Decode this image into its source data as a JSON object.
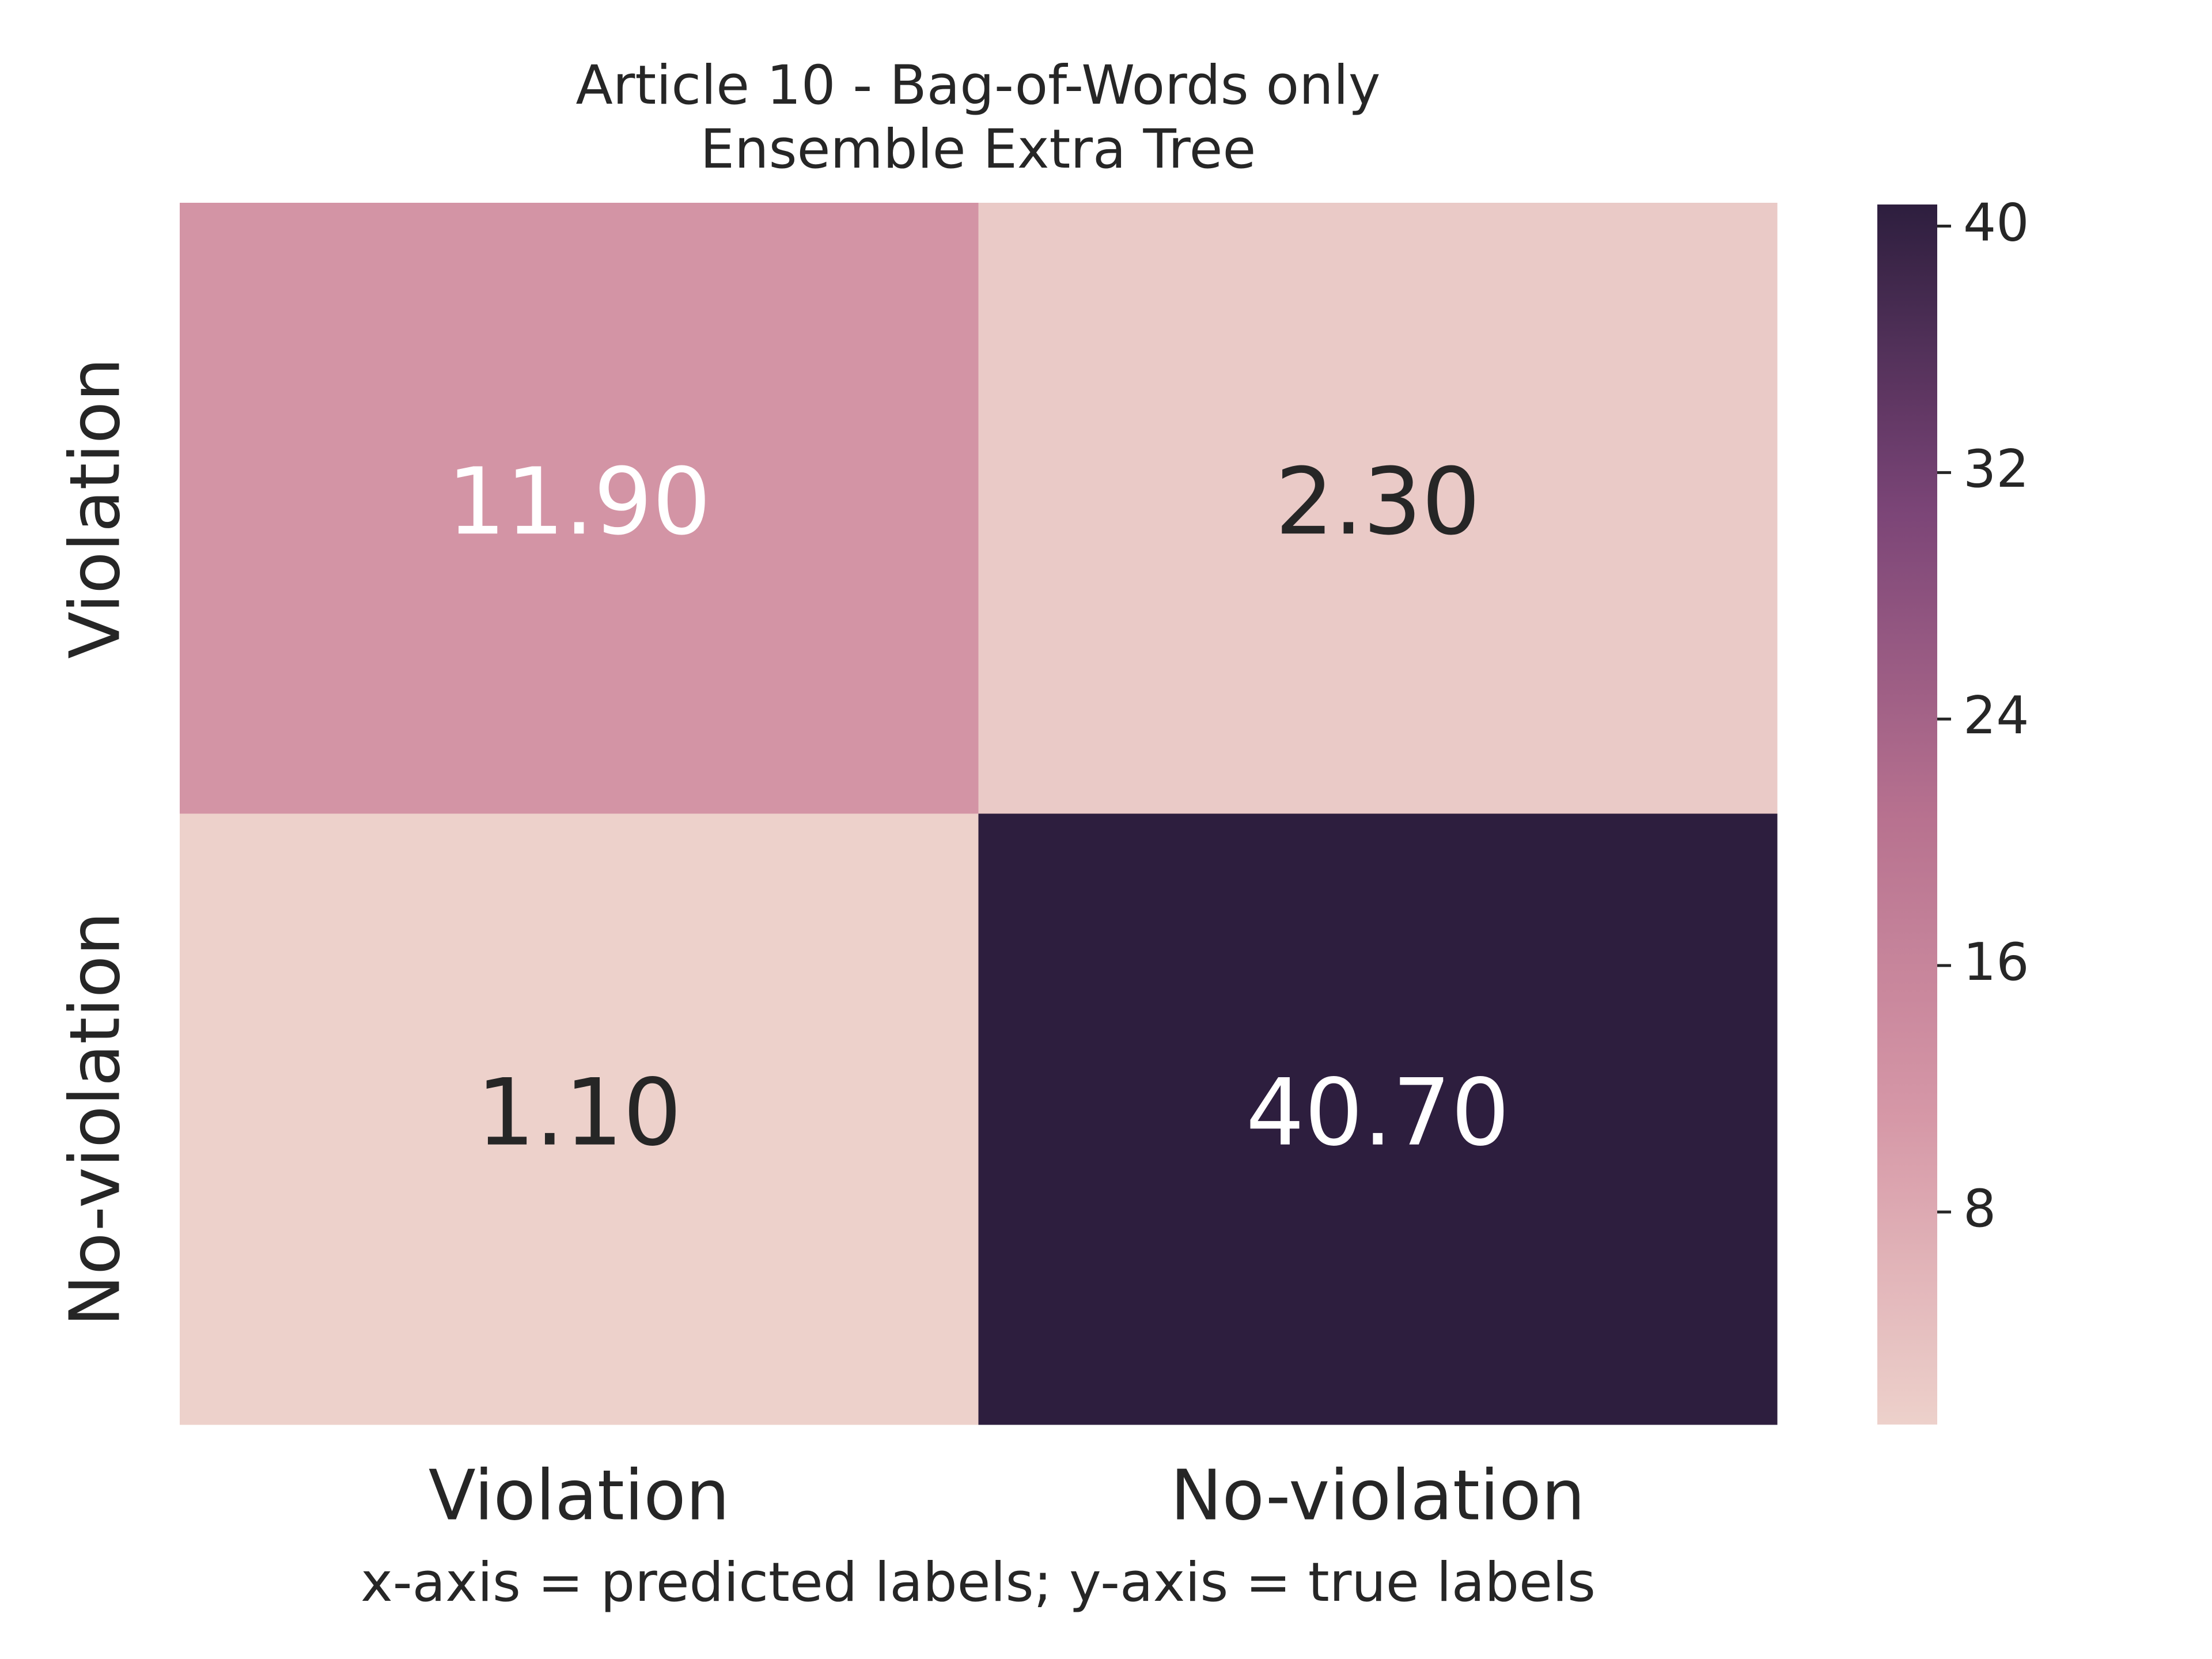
{
  "chart_data": {
    "type": "heatmap",
    "title": "Article 10 - Bag-of-Words only",
    "subtitle": "Ensemble Extra Tree",
    "x_categories": [
      "Violation",
      "No-violation"
    ],
    "y_categories": [
      "Violation",
      "No-violation"
    ],
    "values": [
      [
        11.9,
        2.3
      ],
      [
        1.1,
        40.7
      ]
    ],
    "value_labels": [
      [
        "11.90",
        "2.30"
      ],
      [
        "1.10",
        "40.70"
      ]
    ],
    "caption": "x-axis = predicted labels; y-axis = true labels",
    "clim": [
      1.1,
      40.7
    ],
    "cticks": [
      8,
      16,
      24,
      32,
      40
    ],
    "colormap": [
      "#edd1cb",
      "#d698a7",
      "#b7718f",
      "#7b4577",
      "#2d1e3e"
    ]
  }
}
